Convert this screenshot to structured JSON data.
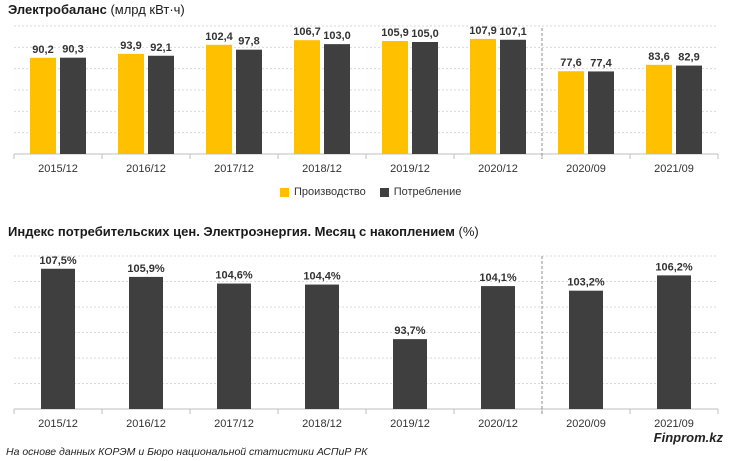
{
  "chart_data": [
    {
      "type": "bar",
      "title": "Электробаланс",
      "unit": "(млрд кВт·ч)",
      "categories": [
        "2015/12",
        "2016/12",
        "2017/12",
        "2018/12",
        "2019/12",
        "2020/12",
        "2020/09",
        "2021/09"
      ],
      "series": [
        {
          "name": "Производство",
          "values": [
            90.2,
            93.9,
            102.4,
            106.7,
            105.9,
            107.9,
            77.6,
            83.6
          ],
          "labels": [
            "90,2",
            "93,9",
            "102,4",
            "106,7",
            "105,9",
            "107,9",
            "77,6",
            "83,6"
          ],
          "color": "#FFC000"
        },
        {
          "name": "Потребление",
          "values": [
            90.3,
            92.1,
            97.8,
            103.0,
            105.0,
            107.1,
            77.4,
            82.9
          ],
          "labels": [
            "90,3",
            "92,1",
            "97,8",
            "103,0",
            "105,0",
            "107,1",
            "77,4",
            "82,9"
          ],
          "color": "#3F3F3F"
        }
      ],
      "ylim": [
        0,
        120
      ],
      "grid": true,
      "legend": "bottom-center",
      "separator_after_category": 5
    },
    {
      "type": "bar",
      "title": "Индекс потребительских цен. Электроэнергия. Месяц с накоплением",
      "unit": "(%)",
      "categories": [
        "2015/12",
        "2016/12",
        "2017/12",
        "2018/12",
        "2019/12",
        "2020/12",
        "2020/09",
        "2021/09"
      ],
      "series": [
        {
          "values": [
            107.5,
            105.9,
            104.6,
            104.4,
            93.7,
            104.1,
            103.2,
            106.2
          ],
          "labels": [
            "107,5%",
            "105,9%",
            "104,6%",
            "104,4%",
            "93,7%",
            "104,1%",
            "103,2%",
            "106,2%"
          ],
          "color": "#3F3F3F"
        }
      ],
      "ylim": [
        80,
        110
      ],
      "grid": true,
      "separator_after_category": 5
    }
  ],
  "footer": {
    "source": "На основе данных КОРЭМ и Бюро национальной статистики АСПиР РК",
    "brand": "Finprom.kz"
  }
}
